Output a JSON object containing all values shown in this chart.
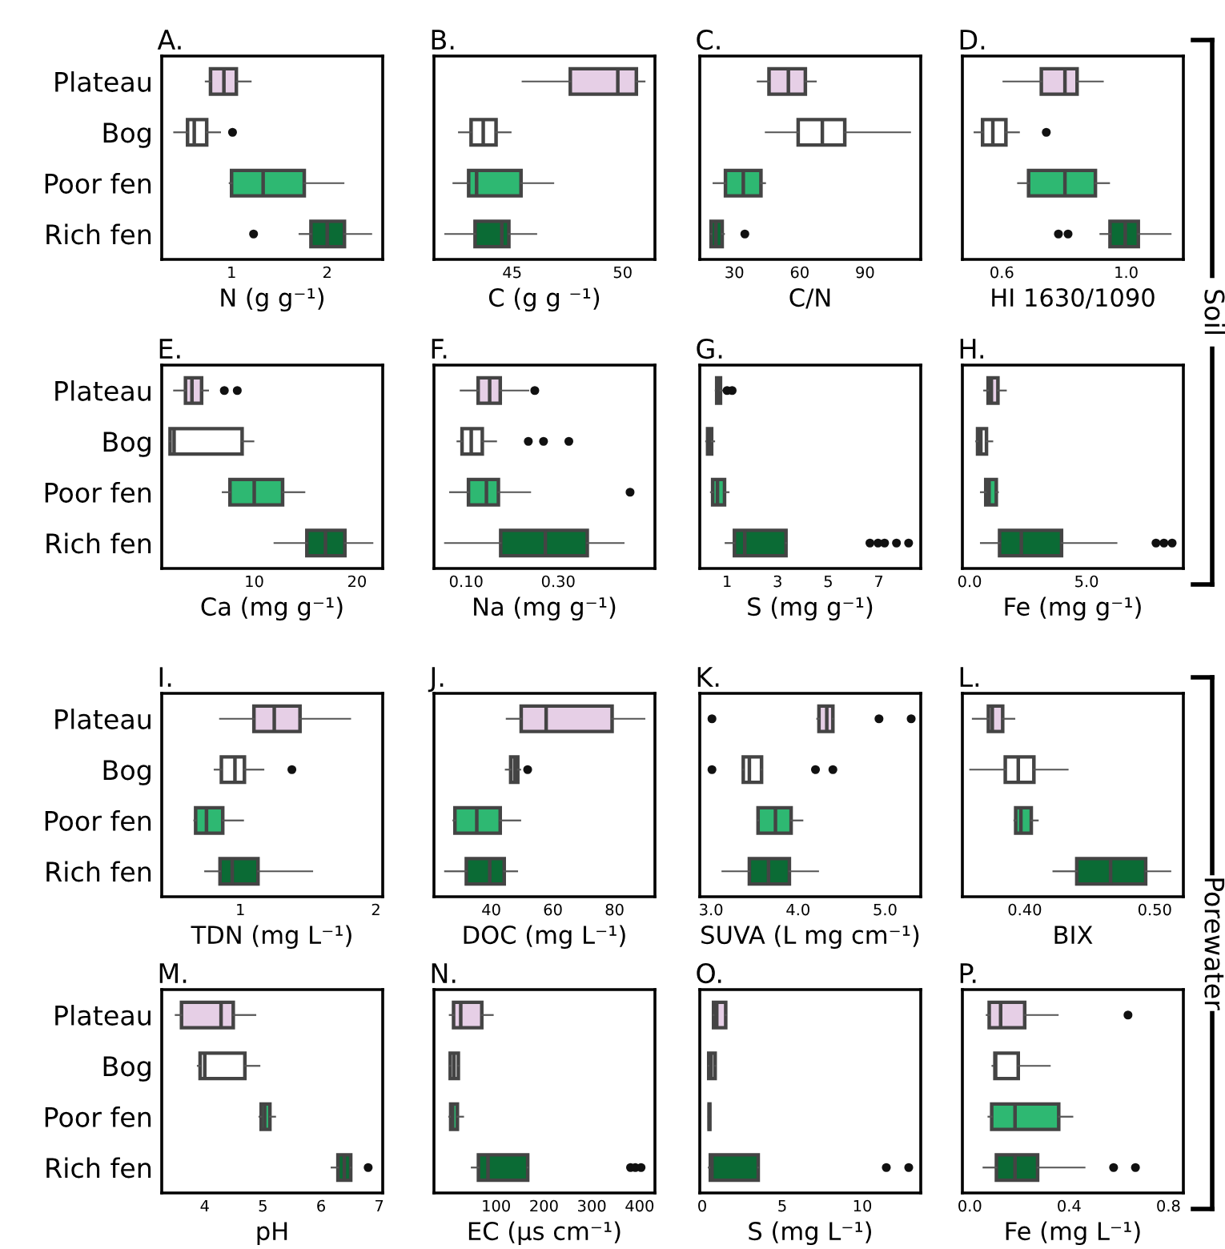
{
  "chart_data": [
    {
      "type": "box",
      "orientation": "horizontal",
      "title": "A.",
      "xlabel": "N (g g⁻¹)",
      "categories": [
        "Plateau",
        "Bog",
        "Poor fen",
        "Rich fen"
      ],
      "colors": [
        "#e6cfe6",
        "#ffffff",
        "#2eb872",
        "#0b6b35"
      ],
      "xlim": [
        0.27,
        2.58
      ],
      "xticks": [
        1,
        2
      ],
      "boxes": [
        {
          "low": 0.73,
          "q1": 0.78,
          "median": 0.92,
          "q3": 1.05,
          "high": 1.2
        },
        {
          "low": 0.4,
          "q1": 0.54,
          "median": 0.61,
          "q3": 0.74,
          "high": 0.88,
          "outliers": [
            1.01
          ]
        },
        {
          "low": 0.98,
          "q1": 1.0,
          "median": 1.33,
          "q3": 1.76,
          "high": 2.17
        },
        {
          "low": 1.71,
          "q1": 1.83,
          "median": 2.0,
          "q3": 2.18,
          "high": 2.46,
          "outliers": [
            1.23
          ]
        }
      ]
    },
    {
      "type": "box",
      "orientation": "horizontal",
      "title": "B.",
      "xlabel": "C (g g ⁻¹)",
      "categories": [
        null,
        null,
        null,
        null
      ],
      "colors": [
        "#e6cfe6",
        "#ffffff",
        "#2eb872",
        "#0b6b35"
      ],
      "xlim": [
        41.46,
        51.46
      ],
      "xticks": [
        45,
        50
      ],
      "boxes": [
        {
          "low": 45.47,
          "q1": 47.63,
          "median": 49.78,
          "q3": 50.62,
          "high": 50.99
        },
        {
          "low": 42.59,
          "q1": 43.14,
          "median": 43.69,
          "q3": 44.27,
          "high": 44.93
        },
        {
          "low": 42.34,
          "q1": 43.03,
          "median": 43.39,
          "q3": 45.4,
          "high": 46.86
        },
        {
          "low": 41.97,
          "q1": 43.32,
          "median": 44.53,
          "q3": 44.85,
          "high": 46.09
        }
      ]
    },
    {
      "type": "box",
      "orientation": "horizontal",
      "title": "C.",
      "xlabel": "C/N",
      "categories": [
        null,
        null,
        null,
        null
      ],
      "colors": [
        "#e6cfe6",
        "#ffffff",
        "#2eb872",
        "#0b6b35"
      ],
      "xlim": [
        14.1,
        115.6
      ],
      "xticks": [
        30,
        60,
        90
      ],
      "boxes": [
        {
          "low": 40.7,
          "q1": 45.9,
          "median": 54.8,
          "q3": 62.6,
          "high": 67.4
        },
        {
          "low": 44.4,
          "q1": 59.3,
          "median": 70.4,
          "q3": 80.7,
          "high": 110.7
        },
        {
          "low": 20.4,
          "q1": 25.9,
          "median": 34.1,
          "q3": 42.2,
          "high": 44.1
        },
        {
          "low": 19.3,
          "q1": 19.3,
          "median": 21.5,
          "q3": 24.4,
          "high": 25.2,
          "outliers": [
            34.8
          ]
        }
      ]
    },
    {
      "type": "box",
      "orientation": "horizontal",
      "title": "D.",
      "xlabel": "HI 1630/1090",
      "annotations": [
        "Soil"
      ],
      "categories": [
        null,
        null,
        null,
        null
      ],
      "colors": [
        "#e6cfe6",
        "#ffffff",
        "#2eb872",
        "#0b6b35"
      ],
      "xlim": [
        0.473,
        1.184
      ],
      "xticks": [
        {
          "value": 0.6,
          "label": "0.6"
        },
        {
          "value": 1.0,
          "label": "1.0"
        }
      ],
      "boxes": [
        {
          "low": 0.605,
          "q1": 0.727,
          "median": 0.803,
          "q3": 0.842,
          "high": 0.925
        },
        {
          "low": 0.512,
          "q1": 0.538,
          "median": 0.571,
          "q3": 0.613,
          "high": 0.655,
          "outliers": [
            0.743
          ]
        },
        {
          "low": 0.652,
          "q1": 0.686,
          "median": 0.803,
          "q3": 0.901,
          "high": 0.945
        },
        {
          "low": 0.917,
          "q1": 0.948,
          "median": 0.997,
          "q3": 1.039,
          "high": 1.143,
          "outliers": [
            0.782,
            0.813
          ]
        }
      ]
    },
    {
      "type": "box",
      "orientation": "horizontal",
      "title": "E.",
      "xlabel": "Ca (mg g⁻¹)",
      "categories": [
        "Plateau",
        "Bog",
        "Poor fen",
        "Rich fen"
      ],
      "colors": [
        "#e6cfe6",
        "#ffffff",
        "#2eb872",
        "#0b6b35"
      ],
      "xlim": [
        1.0,
        22.5
      ],
      "xticks": [
        10,
        20
      ],
      "boxes": [
        {
          "low": 2.2,
          "q1": 3.31,
          "median": 3.94,
          "q3": 4.88,
          "high": 5.51,
          "outliers": [
            7.09,
            8.35
          ]
        },
        {
          "low": 1.81,
          "q1": 1.81,
          "median": 2.2,
          "q3": 8.82,
          "high": 9.92
        },
        {
          "low": 6.93,
          "q1": 7.64,
          "median": 10.0,
          "q3": 12.76,
          "high": 14.88
        },
        {
          "low": 11.97,
          "q1": 15.12,
          "median": 16.93,
          "q3": 18.82,
          "high": 21.5
        }
      ]
    },
    {
      "type": "box",
      "orientation": "horizontal",
      "title": "F.",
      "xlabel": "Na (mg g⁻¹)",
      "categories": [
        null,
        null,
        null,
        null
      ],
      "colors": [
        "#e6cfe6",
        "#ffffff",
        "#2eb872",
        "#0b6b35"
      ],
      "xlim": [
        0.03,
        0.51
      ],
      "xticks": [
        {
          "value": 0.1,
          "label": "0.10"
        },
        {
          "value": 0.3,
          "label": "0.30"
        }
      ],
      "boxes": [
        {
          "low": 0.088,
          "q1": 0.126,
          "median": 0.151,
          "q3": 0.174,
          "high": 0.235,
          "outliers": [
            0.249
          ]
        },
        {
          "low": 0.081,
          "q1": 0.091,
          "median": 0.111,
          "q3": 0.135,
          "high": 0.165,
          "outliers": [
            0.235,
            0.268,
            0.323
          ]
        },
        {
          "low": 0.065,
          "q1": 0.105,
          "median": 0.144,
          "q3": 0.17,
          "high": 0.239,
          "outliers": [
            0.456
          ]
        },
        {
          "low": 0.054,
          "q1": 0.175,
          "median": 0.272,
          "q3": 0.363,
          "high": 0.442
        }
      ]
    },
    {
      "type": "box",
      "orientation": "horizontal",
      "title": "G.",
      "xlabel": "S (mg g⁻¹)",
      "categories": [
        null,
        null,
        null,
        null
      ],
      "colors": [
        "#e6cfe6",
        "#ffffff",
        "#2eb872",
        "#0b6b35"
      ],
      "xlim": [
        -0.08,
        8.66
      ],
      "xticks": [
        1,
        3,
        5,
        7
      ],
      "boxes": [
        {
          "low": 0.55,
          "q1": 0.59,
          "median": 0.62,
          "q3": 0.74,
          "high": 0.81,
          "outliers": [
            1.0,
            1.2
          ]
        },
        {
          "low": 0.17,
          "q1": 0.23,
          "median": 0.27,
          "q3": 0.39,
          "high": 0.49
        },
        {
          "low": 0.36,
          "q1": 0.43,
          "median": 0.62,
          "q3": 0.9,
          "high": 1.06
        },
        {
          "low": 0.94,
          "q1": 1.29,
          "median": 1.7,
          "q3": 3.33,
          "high": 3.33,
          "outliers": [
            6.65,
            6.97,
            7.23,
            7.7,
            8.18
          ]
        }
      ]
    },
    {
      "type": "box",
      "orientation": "horizontal",
      "title": "H.",
      "xlabel": "Fe (mg g⁻¹)",
      "categories": [
        null,
        null,
        null,
        null
      ],
      "colors": [
        "#e6cfe6",
        "#ffffff",
        "#2eb872",
        "#0b6b35"
      ],
      "xlim": [
        -0.31,
        9.14
      ],
      "xticks": [
        {
          "value": 0,
          "label": "0.0"
        },
        {
          "value": 5,
          "label": "5.0"
        }
      ],
      "boxes": [
        {
          "low": 0.62,
          "q1": 0.79,
          "median": 0.93,
          "q3": 1.21,
          "high": 1.55
        },
        {
          "low": 0.28,
          "q1": 0.34,
          "median": 0.48,
          "q3": 0.72,
          "high": 0.97
        },
        {
          "low": 0.48,
          "q1": 0.69,
          "median": 0.83,
          "q3": 1.14,
          "high": 1.21
        },
        {
          "low": 0.48,
          "q1": 1.28,
          "median": 2.21,
          "q3": 3.93,
          "high": 6.28,
          "outliers": [
            7.97,
            8.31,
            8.66
          ]
        }
      ]
    },
    {
      "type": "box",
      "orientation": "horizontal",
      "title": "I.",
      "xlabel": "TDN (mg L⁻¹)",
      "categories": [
        "Plateau",
        "Bog",
        "Poor fen",
        "Rich fen"
      ],
      "colors": [
        "#e6cfe6",
        "#ffffff",
        "#2eb872",
        "#0b6b35"
      ],
      "xlim": [
        0.42,
        2.05
      ],
      "xticks": [
        1,
        2
      ],
      "boxes": [
        {
          "low": 0.85,
          "q1": 1.1,
          "median": 1.25,
          "q3": 1.44,
          "high": 1.81
        },
        {
          "low": 0.81,
          "q1": 0.86,
          "median": 0.96,
          "q3": 1.03,
          "high": 1.17,
          "outliers": [
            1.38
          ]
        },
        {
          "low": 0.66,
          "q1": 0.67,
          "median": 0.75,
          "q3": 0.87,
          "high": 1.02
        },
        {
          "low": 0.74,
          "q1": 0.85,
          "median": 0.94,
          "q3": 1.13,
          "high": 1.53
        }
      ]
    },
    {
      "type": "box",
      "orientation": "horizontal",
      "title": "J.",
      "xlabel": "DOC (mg L⁻¹)",
      "categories": [
        null,
        null,
        null,
        null
      ],
      "colors": [
        "#e6cfe6",
        "#ffffff",
        "#2eb872",
        "#0b6b35"
      ],
      "xlim": [
        21.4,
        93.1
      ],
      "xticks": [
        40,
        60,
        80
      ],
      "boxes": [
        {
          "low": 45.0,
          "q1": 49.7,
          "median": 57.8,
          "q3": 79.2,
          "high": 89.7
        },
        {
          "low": 44.7,
          "q1": 46.3,
          "median": 47.6,
          "q3": 48.6,
          "high": 49.4,
          "outliers": [
            51.8
          ]
        },
        {
          "low": 27.7,
          "q1": 28.2,
          "median": 35.3,
          "q3": 42.9,
          "high": 49.4
        },
        {
          "low": 25.0,
          "q1": 31.9,
          "median": 39.5,
          "q3": 44.2,
          "high": 48.4
        }
      ]
    },
    {
      "type": "box",
      "orientation": "horizontal",
      "title": "K.",
      "xlabel": "SUVA (L mg cm⁻¹)",
      "categories": [
        null,
        null,
        null,
        null
      ],
      "colors": [
        "#e6cfe6",
        "#ffffff",
        "#2eb872",
        "#0b6b35"
      ],
      "xlim": [
        2.87,
        5.41
      ],
      "xticks": [
        {
          "value": 3,
          "label": "3.0"
        },
        {
          "value": 4,
          "label": "4.0"
        },
        {
          "value": 5,
          "label": "5.0"
        }
      ],
      "boxes": [
        {
          "low": 4.22,
          "q1": 4.24,
          "median": 4.33,
          "q3": 4.4,
          "high": 4.4,
          "outliers": [
            3.01,
            4.93,
            5.3
          ]
        },
        {
          "low": 3.37,
          "q1": 3.37,
          "median": 3.44,
          "q3": 3.58,
          "high": 3.58,
          "outliers": [
            3.01,
            4.2,
            4.4
          ]
        },
        {
          "low": 3.54,
          "q1": 3.54,
          "median": 3.74,
          "q3": 3.92,
          "high": 4.05
        },
        {
          "low": 3.13,
          "q1": 3.44,
          "median": 3.66,
          "q3": 3.9,
          "high": 4.23
        }
      ]
    },
    {
      "type": "box",
      "orientation": "horizontal",
      "title": "L.",
      "xlabel": "BIX",
      "annotations": [
        "Porewater"
      ],
      "categories": [
        null,
        null,
        null,
        null
      ],
      "colors": [
        "#e6cfe6",
        "#ffffff",
        "#2eb872",
        "#0b6b35"
      ],
      "xlim": [
        0.352,
        0.522
      ],
      "xticks": [
        {
          "value": 0.4,
          "label": "0.40"
        },
        {
          "value": 0.5,
          "label": "0.50"
        }
      ],
      "boxes": [
        {
          "low": 0.36,
          "q1": 0.372,
          "median": 0.375,
          "q3": 0.383,
          "high": 0.392
        },
        {
          "low": 0.358,
          "q1": 0.385,
          "median": 0.395,
          "q3": 0.407,
          "high": 0.433
        },
        {
          "low": 0.392,
          "q1": 0.393,
          "median": 0.397,
          "q3": 0.405,
          "high": 0.41
        },
        {
          "low": 0.422,
          "q1": 0.44,
          "median": 0.466,
          "q3": 0.493,
          "high": 0.512
        }
      ]
    },
    {
      "type": "box",
      "orientation": "horizontal",
      "title": "M.",
      "xlabel": "pH",
      "categories": [
        "Plateau",
        "Bog",
        "Poor fen",
        "Rich fen"
      ],
      "colors": [
        "#e6cfe6",
        "#ffffff",
        "#2eb872",
        "#0b6b35"
      ],
      "xlim": [
        3.26,
        7.06
      ],
      "xticks": [
        4,
        5,
        6,
        7
      ],
      "boxes": [
        {
          "low": 3.5,
          "q1": 3.6,
          "median": 4.28,
          "q3": 4.49,
          "high": 4.87
        },
        {
          "low": 3.88,
          "q1": 3.92,
          "median": 4.0,
          "q3": 4.69,
          "high": 4.94
        },
        {
          "low": 4.94,
          "q1": 4.97,
          "median": 5.03,
          "q3": 5.12,
          "high": 5.21
        },
        {
          "low": 6.18,
          "q1": 6.29,
          "median": 6.4,
          "q3": 6.51,
          "high": 6.51,
          "outliers": [
            6.81
          ]
        }
      ]
    },
    {
      "type": "box",
      "orientation": "horizontal",
      "title": "N.",
      "xlabel": "EC (µs cm⁻¹)",
      "categories": [
        null,
        null,
        null,
        null
      ],
      "colors": [
        "#e6cfe6",
        "#ffffff",
        "#2eb872",
        "#0b6b35"
      ],
      "xlim": [
        -30,
        432
      ],
      "xticks": [
        100,
        200,
        300,
        400
      ],
      "boxes": [
        {
          "low": 3,
          "q1": 11,
          "median": 26,
          "q3": 70,
          "high": 93
        },
        {
          "low": 3,
          "q1": 4,
          "median": 12,
          "q3": 21,
          "high": 21
        },
        {
          "low": 2,
          "q1": 5,
          "median": 9,
          "q3": 19,
          "high": 31
        },
        {
          "low": 49,
          "q1": 63,
          "median": 83,
          "q3": 166,
          "high": 166,
          "outliers": [
            381,
            391,
            403
          ]
        }
      ]
    },
    {
      "type": "box",
      "orientation": "horizontal",
      "title": "O.",
      "xlabel": "S (mg L⁻¹)",
      "categories": [
        null,
        null,
        null,
        null
      ],
      "colors": [
        "#e6cfe6",
        "#ffffff",
        "#2eb872",
        "#0b6b35"
      ],
      "xlim": [
        -0.15,
        13.65
      ],
      "xticks": [
        0,
        5,
        10
      ],
      "boxes": [
        {
          "low": 0.71,
          "q1": 0.71,
          "median": 0.91,
          "q3": 1.47,
          "high": 1.47
        },
        {
          "low": 0.41,
          "q1": 0.41,
          "median": 0.56,
          "q3": 0.81,
          "high": 0.81
        },
        {
          "low": 0.4,
          "q1": 0.43,
          "median": 0.45,
          "q3": 0.48,
          "high": 0.5
        },
        {
          "low": 0.41,
          "q1": 0.51,
          "median": 0.61,
          "q3": 3.5,
          "high": 3.5,
          "outliers": [
            11.5,
            12.9
          ]
        }
      ]
    },
    {
      "type": "box",
      "orientation": "horizontal",
      "title": "P.",
      "xlabel": "Fe (mg L⁻¹)",
      "categories": [
        null,
        null,
        null,
        null
      ],
      "colors": [
        "#e6cfe6",
        "#ffffff",
        "#2eb872",
        "#0b6b35"
      ],
      "xlim": [
        -0.03,
        0.86
      ],
      "xticks": [
        {
          "value": 0,
          "label": "0.0"
        },
        {
          "value": 0.4,
          "label": "0.4"
        },
        {
          "value": 0.8,
          "label": "0.8"
        }
      ],
      "boxes": [
        {
          "low": 0.068,
          "q1": 0.078,
          "median": 0.124,
          "q3": 0.221,
          "high": 0.354,
          "outliers": [
            0.637
          ]
        },
        {
          "low": 0.091,
          "q1": 0.101,
          "median": 0.104,
          "q3": 0.195,
          "high": 0.322
        },
        {
          "low": 0.075,
          "q1": 0.088,
          "median": 0.182,
          "q3": 0.358,
          "high": 0.413
        },
        {
          "low": 0.055,
          "q1": 0.107,
          "median": 0.182,
          "q3": 0.273,
          "high": 0.462,
          "outliers": [
            0.579,
            0.667
          ]
        }
      ]
    }
  ]
}
